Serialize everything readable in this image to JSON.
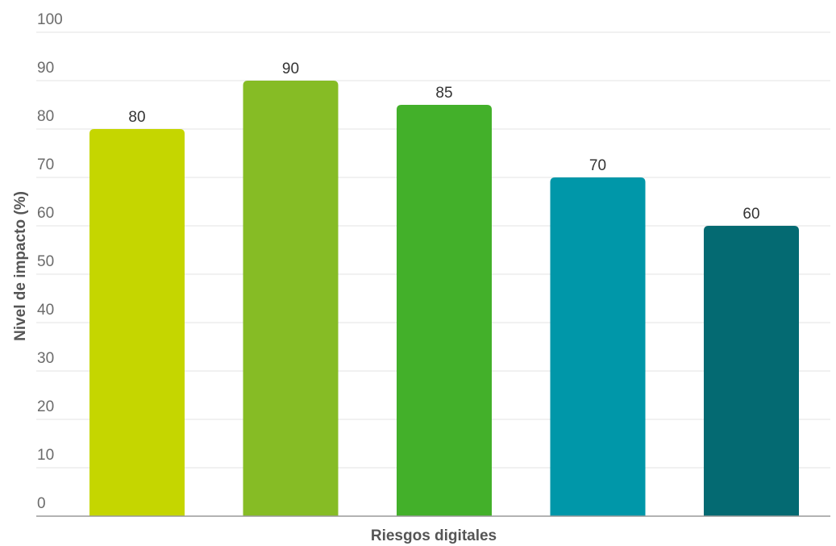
{
  "chart_data": {
    "type": "bar",
    "xlabel": "Riesgos digitales",
    "ylabel": "Nivel de impacto (%)",
    "ylim": [
      0,
      100
    ],
    "yticks": [
      0,
      10,
      20,
      30,
      40,
      50,
      60,
      70,
      80,
      90,
      100
    ],
    "grid": true,
    "legend": "none",
    "values": [
      80,
      90,
      85,
      70,
      60
    ],
    "colors": [
      "#c5d600",
      "#86bc25",
      "#43b02a",
      "#0097a9",
      "#046a72"
    ],
    "data_labels": [
      "80",
      "90",
      "85",
      "70",
      "60"
    ]
  }
}
